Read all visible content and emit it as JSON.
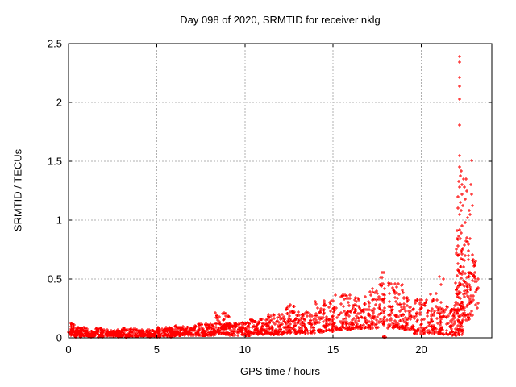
{
  "chart_data": {
    "type": "scatter",
    "title": "Day 098 of 2020, SRMTID for receiver nklg",
    "xlabel": "GPS time / hours",
    "ylabel": "SRMTID / TECUs",
    "xlim": [
      0,
      24
    ],
    "ylim": [
      0,
      2.5
    ],
    "xticks": [
      0,
      5,
      10,
      15,
      20
    ],
    "xtick_labels": [
      "0",
      "5",
      "10",
      "15",
      "20"
    ],
    "yticks": [
      0,
      0.5,
      1,
      1.5,
      2,
      2.5
    ],
    "ytick_labels": [
      "0",
      "0.5",
      "1",
      "1.5",
      "2",
      "2.5"
    ],
    "grid": true,
    "legend": "none",
    "series_name": "SRMTID",
    "marker": {
      "shape": "plus",
      "size": 5,
      "color": "#ff0000"
    },
    "colors": {
      "marker": "#ff0000",
      "grid": "#b0b0b0",
      "border": "#000000",
      "text": "#000000",
      "background": "#ffffff"
    },
    "seed": 2020098,
    "point_bands_comment": "dense scatter approximated as bands: [t_start, t_end, n_points, y_min, y_max, bias_exponent]",
    "bands": [
      [
        0.0,
        0.35,
        32,
        0.02,
        0.13,
        1.4
      ],
      [
        0.35,
        1.0,
        62,
        0.01,
        0.09,
        1.5
      ],
      [
        1.0,
        2.0,
        90,
        0.01,
        0.08,
        1.5
      ],
      [
        2.0,
        3.0,
        90,
        0.01,
        0.07,
        1.5
      ],
      [
        3.0,
        4.0,
        90,
        0.01,
        0.08,
        1.5
      ],
      [
        4.0,
        5.0,
        90,
        0.01,
        0.07,
        1.5
      ],
      [
        5.0,
        6.0,
        90,
        0.01,
        0.09,
        1.5
      ],
      [
        6.0,
        7.0,
        90,
        0.02,
        0.1,
        1.5
      ],
      [
        7.0,
        8.3,
        110,
        0.02,
        0.12,
        1.6
      ],
      [
        8.3,
        9.1,
        72,
        0.03,
        0.22,
        1.9
      ],
      [
        9.1,
        10.3,
        100,
        0.02,
        0.13,
        1.5
      ],
      [
        10.3,
        11.3,
        88,
        0.03,
        0.16,
        1.6
      ],
      [
        11.3,
        12.3,
        88,
        0.03,
        0.2,
        1.8
      ],
      [
        12.3,
        13.0,
        66,
        0.04,
        0.28,
        2.0
      ],
      [
        13.0,
        14.0,
        88,
        0.04,
        0.22,
        1.7
      ],
      [
        14.0,
        15.0,
        88,
        0.05,
        0.32,
        1.9
      ],
      [
        15.0,
        16.0,
        88,
        0.07,
        0.38,
        1.9
      ],
      [
        16.0,
        17.0,
        88,
        0.08,
        0.35,
        1.8
      ],
      [
        17.0,
        17.6,
        55,
        0.08,
        0.42,
        1.8
      ],
      [
        17.6,
        17.95,
        42,
        0.1,
        0.56,
        1.4
      ],
      [
        17.85,
        17.98,
        8,
        0.0,
        0.012,
        1.0
      ],
      [
        18.05,
        19.0,
        85,
        0.08,
        0.47,
        1.8
      ],
      [
        19.0,
        19.6,
        52,
        0.07,
        0.36,
        1.8
      ],
      [
        19.6,
        20.3,
        58,
        0.03,
        0.33,
        1.8
      ],
      [
        20.3,
        21.0,
        58,
        0.04,
        0.4,
        1.8
      ],
      [
        21.0,
        21.6,
        52,
        0.03,
        0.3,
        1.8
      ],
      [
        21.6,
        22.35,
        95,
        0.02,
        0.3,
        1.5
      ],
      [
        21.95,
        22.35,
        60,
        0.25,
        0.92,
        1.2
      ],
      [
        22.35,
        22.75,
        58,
        0.15,
        0.85,
        1.4
      ],
      [
        22.75,
        23.1,
        34,
        0.18,
        0.75,
        1.4
      ],
      [
        23.1,
        23.3,
        8,
        0.25,
        0.5,
        1.3
      ]
    ],
    "outliers": [
      [
        21.02,
        0.52
      ],
      [
        21.25,
        0.5
      ],
      [
        21.1,
        0.45
      ],
      [
        22.15,
        1.81
      ],
      [
        22.16,
        2.03
      ],
      [
        22.17,
        2.14
      ],
      [
        22.16,
        2.21
      ],
      [
        22.15,
        2.34
      ],
      [
        22.16,
        2.39
      ],
      [
        22.17,
        1.55
      ],
      [
        22.86,
        1.51
      ],
      [
        22.08,
        1.1
      ],
      [
        22.1,
        1.2
      ],
      [
        22.12,
        1.33
      ],
      [
        22.15,
        1.45
      ],
      [
        22.18,
        1.28
      ],
      [
        22.2,
        1.38
      ],
      [
        22.15,
        1.05
      ],
      [
        22.22,
        1.15
      ],
      [
        22.25,
        1.42
      ],
      [
        22.28,
        1.08
      ],
      [
        22.3,
        1.3
      ],
      [
        22.32,
        1.22
      ],
      [
        22.35,
        1.12
      ],
      [
        22.4,
        1.35
      ],
      [
        22.45,
        1.28
      ],
      [
        22.5,
        1.18
      ],
      [
        22.55,
        1.35
      ],
      [
        22.6,
        1.25
      ],
      [
        22.65,
        1.02
      ],
      [
        22.7,
        1.08
      ],
      [
        22.75,
        1.05
      ],
      [
        22.8,
        1.3
      ],
      [
        22.85,
        1.22
      ],
      [
        22.9,
        1.12
      ],
      [
        22.3,
        0.95
      ],
      [
        22.5,
        0.98
      ]
    ]
  }
}
